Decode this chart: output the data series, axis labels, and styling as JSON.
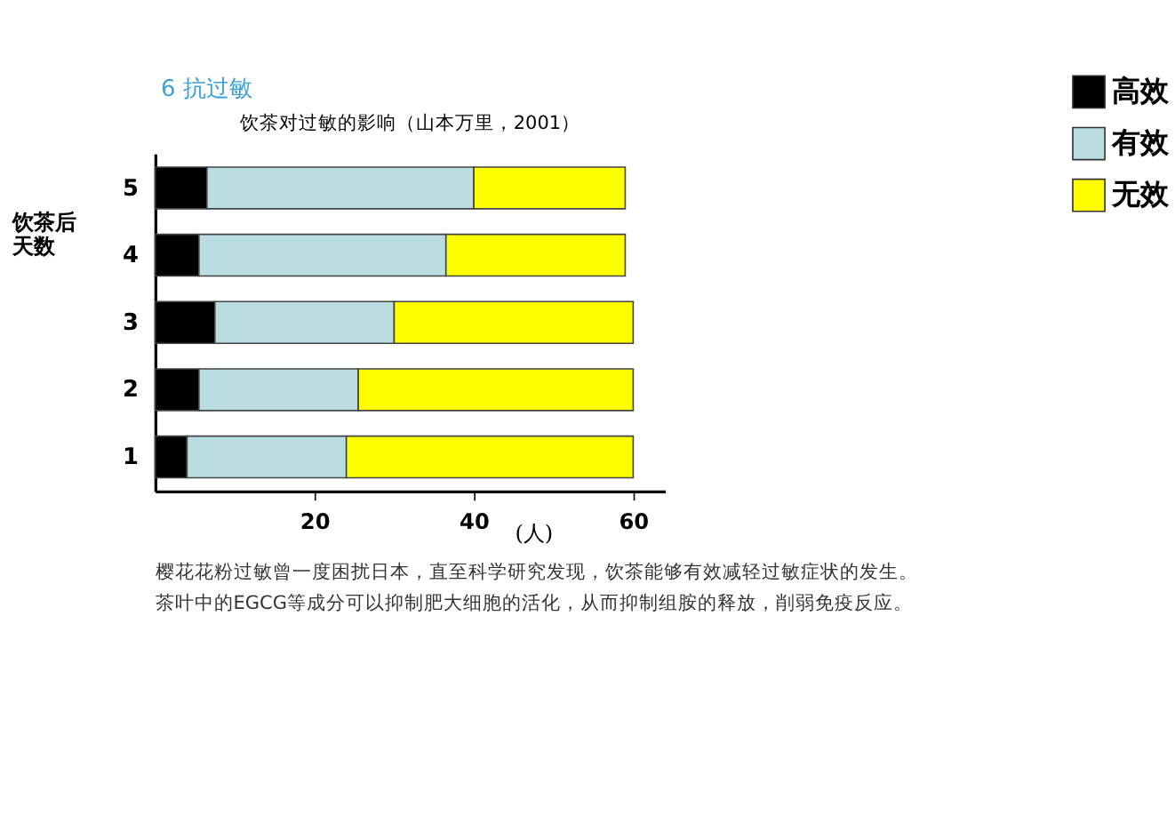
{
  "chart_data": {
    "type": "bar",
    "orientation": "horizontal",
    "stacked": true,
    "title": "6 抗过敏",
    "subtitle": "饮茶对过敏的影响（山本万里，2001）",
    "categories": [
      "5",
      "4",
      "3",
      "2",
      "1"
    ],
    "series": [
      {
        "name": "高效",
        "color": "#000000",
        "values": [
          6.5,
          5.5,
          7.5,
          5.5,
          4
        ]
      },
      {
        "name": "有效",
        "color": "#b9dde0",
        "values": [
          33.5,
          31,
          22.5,
          20,
          20
        ]
      },
      {
        "name": "无效",
        "color": "#ffff00",
        "values": [
          19,
          22.5,
          30,
          34.5,
          36
        ]
      }
    ],
    "xlabel": "(人)",
    "ylabel": "饮茶后天数",
    "xlim": [
      0,
      64
    ],
    "xticks": [
      20,
      40,
      60
    ],
    "grid": false,
    "legend": "top right",
    "annotations": [
      "樱花花粉过敏曾一度困扰日本，直至科学研究发现，饮茶能够有效减轻过敏症状的发生。",
      "茶叶中的EGCG等成分可以抑制肥大细胞的活化，从而抑制组胺的释放，削弱免疫反应。"
    ]
  }
}
